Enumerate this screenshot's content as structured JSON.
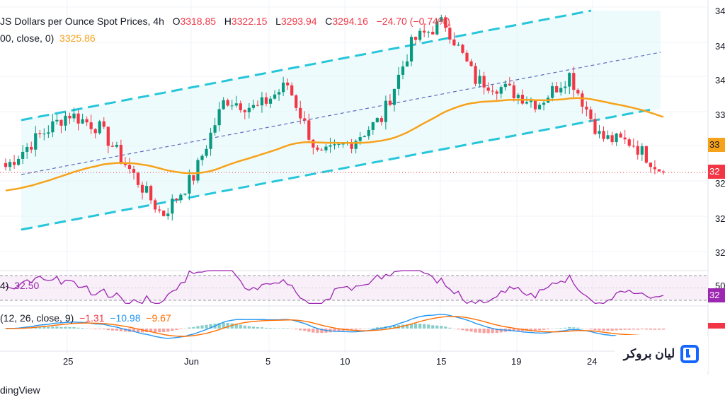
{
  "header": {
    "title": "JS Dollars per Ounce Spot Prices, 4h",
    "open_label": "O",
    "open": "3318.85",
    "high_label": "H",
    "high": "3322.15",
    "low_label": "L",
    "low": "3293.94",
    "close_label": "C",
    "close": "3294.16",
    "change": "−24.70 (−0.74%)"
  },
  "ma_legend": {
    "label": "00, close, 0)",
    "value": "3325.86"
  },
  "rsi_legend": {
    "label": "4)",
    "value": "32.50"
  },
  "macd_legend": {
    "label": "(12, 26, close, 9)",
    "hist": "−1.31",
    "macd": "−10.98",
    "signal": "−9.67"
  },
  "price_axis": [
    "34",
    "34",
    "34",
    "33",
    "33",
    "32",
    "32",
    "32"
  ],
  "price_badges": {
    "ma": "33",
    "last": "32"
  },
  "rsi_axis": {
    "level": "50",
    "badge": "32"
  },
  "time_axis": [
    "25",
    "Jun",
    "5",
    "10",
    "15",
    "19",
    "24"
  ],
  "footer": "dingView",
  "logo": {
    "text": "لیان بروکر"
  },
  "colors": {
    "up": "#089981",
    "down": "#f23645",
    "ma": "#f7a21b",
    "channel": "#26c6da",
    "channel_mid": "#5c6bc0",
    "rsi": "#9c27b0",
    "macd": "#2196f3",
    "signal": "#ff6d00"
  },
  "chart_data": {
    "type": "candlestick",
    "symbol": "US Dollars per Ounce Spot Prices",
    "timeframe": "4h",
    "x_ticks": [
      "25",
      "Jun",
      "5",
      "10",
      "15",
      "19",
      "24"
    ],
    "candles_keypoints": [
      {
        "t": "May 21",
        "close": 3300
      },
      {
        "t": "May 22",
        "close": 3330
      },
      {
        "t": "May 23",
        "close": 3355
      },
      {
        "t": "May 26",
        "close": 3340
      },
      {
        "t": "May 27",
        "close": 3295
      },
      {
        "t": "May 29",
        "close": 3250
      },
      {
        "t": "May 30",
        "close": 3290
      },
      {
        "t": "Jun 2",
        "close": 3370
      },
      {
        "t": "Jun 3",
        "close": 3360
      },
      {
        "t": "Jun 5",
        "close": 3385
      },
      {
        "t": "Jun 6",
        "close": 3310
      },
      {
        "t": "Jun 9",
        "close": 3325
      },
      {
        "t": "Jun 11",
        "close": 3350
      },
      {
        "t": "Jun 13",
        "close": 3430
      },
      {
        "t": "Jun 15",
        "close": 3450
      },
      {
        "t": "Jun 16",
        "close": 3390
      },
      {
        "t": "Jun 18",
        "close": 3380
      },
      {
        "t": "Jun 20",
        "close": 3365
      },
      {
        "t": "Jun 22",
        "close": 3395
      },
      {
        "t": "Jun 23",
        "close": 3330
      },
      {
        "t": "Jun 24",
        "close": 3325
      },
      {
        "t": "Jun 25",
        "close": 3294.16
      }
    ],
    "last": {
      "open": 3318.85,
      "high": 3322.15,
      "low": 3293.94,
      "close": 3294.16
    },
    "moving_average_last": 3325.86,
    "rsi_last": 32.5,
    "macd_last": {
      "histogram": -1.31,
      "macd": -10.98,
      "signal": -9.67
    }
  }
}
